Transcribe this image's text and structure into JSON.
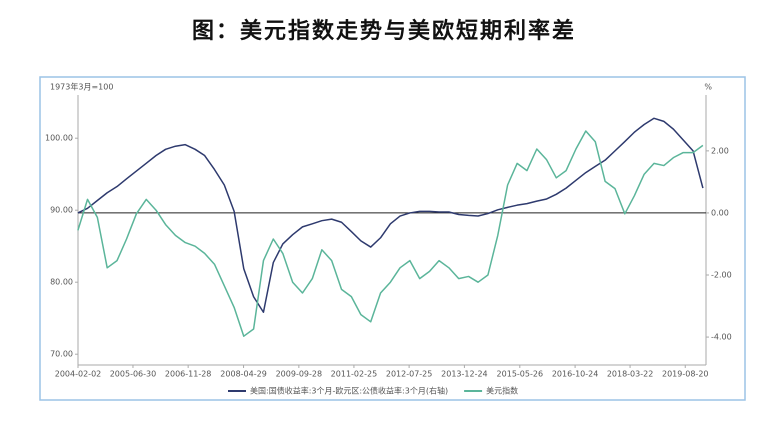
{
  "chart_data": {
    "type": "line",
    "title": "图：美元指数走势与美欧短期利率差",
    "y_label": "1973年3月=100",
    "y2_label": "%",
    "x": [
      "2004-02-01",
      "2004-05-01",
      "2004-08-01",
      "2004-11-01",
      "2005-02-01",
      "2005-05-01",
      "2005-08-01",
      "2005-11-01",
      "2006-02-01",
      "2006-05-01",
      "2006-08-01",
      "2006-11-01",
      "2007-02-01",
      "2007-05-01",
      "2007-08-01",
      "2007-11-01",
      "2008-02-01",
      "2008-05-01",
      "2008-08-01",
      "2008-11-01",
      "2009-02-01",
      "2009-05-01",
      "2009-08-01",
      "2009-11-01",
      "2010-02-01",
      "2010-05-01",
      "2010-08-01",
      "2010-11-01",
      "2011-02-01",
      "2011-05-01",
      "2011-08-01",
      "2011-11-01",
      "2012-02-01",
      "2012-05-01",
      "2012-08-01",
      "2012-11-01",
      "2013-02-01",
      "2013-05-01",
      "2013-08-01",
      "2013-11-01",
      "2014-02-01",
      "2014-05-01",
      "2014-08-01",
      "2014-11-01",
      "2015-02-01",
      "2015-05-01",
      "2015-08-01",
      "2015-11-01",
      "2016-02-01",
      "2016-05-01",
      "2016-08-01",
      "2016-11-01",
      "2017-02-01",
      "2017-05-01",
      "2017-08-01",
      "2017-11-01",
      "2018-02-01",
      "2018-05-01",
      "2018-08-01",
      "2018-11-01",
      "2019-02-01",
      "2019-05-01",
      "2019-08-01",
      "2019-11-01",
      "2020-02-01"
    ],
    "series": [
      {
        "name": "美国:国债收益率:3个月-欧元区:公债收益率:3个月(右轴)",
        "color": "#2e3a6e",
        "axis": "y2",
        "values": [
          0.0,
          0.15,
          0.4,
          0.65,
          0.85,
          1.1,
          1.35,
          1.6,
          1.85,
          2.05,
          2.15,
          2.2,
          2.05,
          1.85,
          1.4,
          0.9,
          0.05,
          -1.8,
          -2.7,
          -3.2,
          -1.6,
          -1.0,
          -0.7,
          -0.45,
          -0.35,
          -0.25,
          -0.2,
          -0.3,
          -0.6,
          -0.9,
          -1.1,
          -0.8,
          -0.35,
          -0.1,
          0.0,
          0.05,
          0.05,
          0.03,
          0.03,
          -0.05,
          -0.08,
          -0.1,
          -0.02,
          0.1,
          0.18,
          0.25,
          0.3,
          0.38,
          0.45,
          0.6,
          0.8,
          1.05,
          1.3,
          1.5,
          1.7,
          2.0,
          2.3,
          2.6,
          2.85,
          3.05,
          2.95,
          2.7,
          2.35,
          2.0,
          0.8
        ]
      },
      {
        "name": "美元指数",
        "color": "#5bb59a",
        "values": [
          87.2,
          91.5,
          89.0,
          82.0,
          83.0,
          86.0,
          89.5,
          91.5,
          90.0,
          88.0,
          86.5,
          85.5,
          85.0,
          84.0,
          82.5,
          79.5,
          76.5,
          72.5,
          73.5,
          83.0,
          86.0,
          84.0,
          80.0,
          78.5,
          80.5,
          84.5,
          83.0,
          79.0,
          78.0,
          75.5,
          74.5,
          78.5,
          80.0,
          82.0,
          83.0,
          80.5,
          81.5,
          83.0,
          82.0,
          80.5,
          80.8,
          80.0,
          81.0,
          86.5,
          93.5,
          96.5,
          95.5,
          98.5,
          97.0,
          94.5,
          95.5,
          98.5,
          101.0,
          99.5,
          94.0,
          93.0,
          89.5,
          92.0,
          95.0,
          96.5,
          96.2,
          97.3,
          98.0,
          98.0,
          99.0
        ]
      }
    ],
    "xlim": [
      "2004-02-02",
      "2020-03-01"
    ],
    "xticks": [
      "2004-02-02",
      "2005-06-30",
      "2006-11-28",
      "2008-04-29",
      "2009-09-28",
      "2011-02-25",
      "2012-07-25",
      "2013-12-24",
      "2015-05-26",
      "2016-10-24",
      "2018-03-22",
      "2019-08-20"
    ],
    "ylim": [
      68.5,
      106
    ],
    "yticks": [
      {
        "value": 70,
        "label": "70.00"
      },
      {
        "value": 80,
        "label": "80.00"
      },
      {
        "value": 90,
        "label": "90.00"
      },
      {
        "value": 100,
        "label": "100.00"
      }
    ],
    "y2lim": [
      -4.9,
      3.8
    ],
    "y2ticks": [
      {
        "value": -4,
        "label": "-4.00"
      },
      {
        "value": -2,
        "label": "-2.00"
      },
      {
        "value": 0,
        "label": "0.00"
      },
      {
        "value": 2,
        "label": "2.00"
      }
    ],
    "legend": "bottom"
  }
}
